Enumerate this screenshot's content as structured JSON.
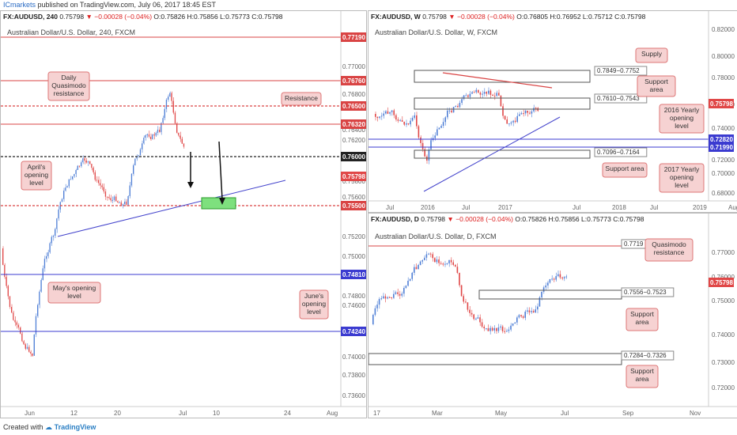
{
  "header": {
    "brand": "ICmarkets",
    "published": "published on TradingView.com, July 06, 2017 18:45 EST"
  },
  "footer": {
    "created_with": "Created with",
    "tv_name": "TradingView"
  },
  "colors": {
    "up": "#4f7fd6",
    "down": "#e04747",
    "resistance": "#d94444",
    "support_line": "#3b3bd0",
    "label_bg": "#f6d2d2",
    "label_border": "#d77",
    "green_box": "#6cd66c"
  },
  "panels": [
    {
      "id": "h4",
      "symbol": "FX:AUDUSD, 240",
      "ohlc": {
        "last": "0.75798",
        "change": "−0.00028 (−0.04%)",
        "o": "0.75826",
        "h": "0.75856",
        "l": "0.75773",
        "c": "0.75798"
      },
      "title": "Australian Dollar/U.S. Dollar, 240, FXCM",
      "price_ticks": [
        "0.77000",
        "0.76800",
        "0.76400",
        "0.76200",
        "0.75800",
        "0.75600",
        "0.75200",
        "0.75000",
        "0.74800",
        "0.74600",
        "0.74400",
        "0.74000",
        "0.73800",
        "0.73600"
      ],
      "price_tags": [
        "0.77190",
        "0.76760",
        "0.76500",
        "0.76320",
        "0.76000",
        "0.75798",
        "0.75500",
        "0.74810",
        "0.74240"
      ],
      "time_ticks": [
        "Jun",
        "12",
        "20",
        "Jul",
        "10",
        "24",
        "Aug"
      ],
      "annotations": [
        "Daily\nQuasimodo\nresistance",
        "Resistance",
        "April's\nopening\nlevel",
        "May's opening\nlevel",
        "June's\nopening\nlevel"
      ]
    },
    {
      "id": "w",
      "symbol": "FX:AUDUSD, W",
      "ohlc": {
        "last": "0.75798",
        "change": "−0.00028 (−0.04%)",
        "o": "0.76805",
        "h": "0.76952",
        "l": "0.75712",
        "c": "0.75798"
      },
      "title": "Australian Dollar/U.S. Dollar, W, FXCM",
      "price_ticks": [
        "0.82000",
        "0.80000",
        "0.78000",
        "0.76000",
        "0.74000",
        "0.72000",
        "0.70000",
        "0.68000"
      ],
      "price_tags": [
        "0.75798",
        "0.72820",
        "0.71990"
      ],
      "time_ticks": [
        "Jul",
        "2016",
        "Jul",
        "2017",
        "Jul",
        "2018",
        "Jul",
        "2019",
        "Aug"
      ],
      "box_labels": [
        "0.7849−0.7752",
        "0.7610−0.7543",
        "0.7096−0.7164"
      ],
      "annotations": [
        "Supply",
        "Support\narea",
        "2016 Yearly\nopening\nlevel",
        "Support area",
        "2017 Yearly\nopening\nlevel"
      ]
    },
    {
      "id": "d",
      "symbol": "FX:AUDUSD, D",
      "ohlc": {
        "last": "0.75798",
        "change": "−0.00028 (−0.04%)",
        "o": "0.75826",
        "h": "0.75856",
        "l": "0.75773",
        "c": "0.75798"
      },
      "title": "Australian Dollar/U.S. Dollar, D, FXCM",
      "price_ticks": [
        "0.77000",
        "0.76000",
        "0.75000",
        "0.74000",
        "0.73000",
        "0.72000"
      ],
      "price_tags": [
        "0.75798"
      ],
      "time_ticks": [
        "17",
        "Mar",
        "May",
        "Jul",
        "Sep",
        "Nov"
      ],
      "box_labels": [
        "0.7719",
        "0.7556−0.7523",
        "0.7284−0.7326"
      ],
      "annotations": [
        "Quasimodo\nresistance",
        "Support\narea",
        "Support\narea"
      ]
    }
  ]
}
